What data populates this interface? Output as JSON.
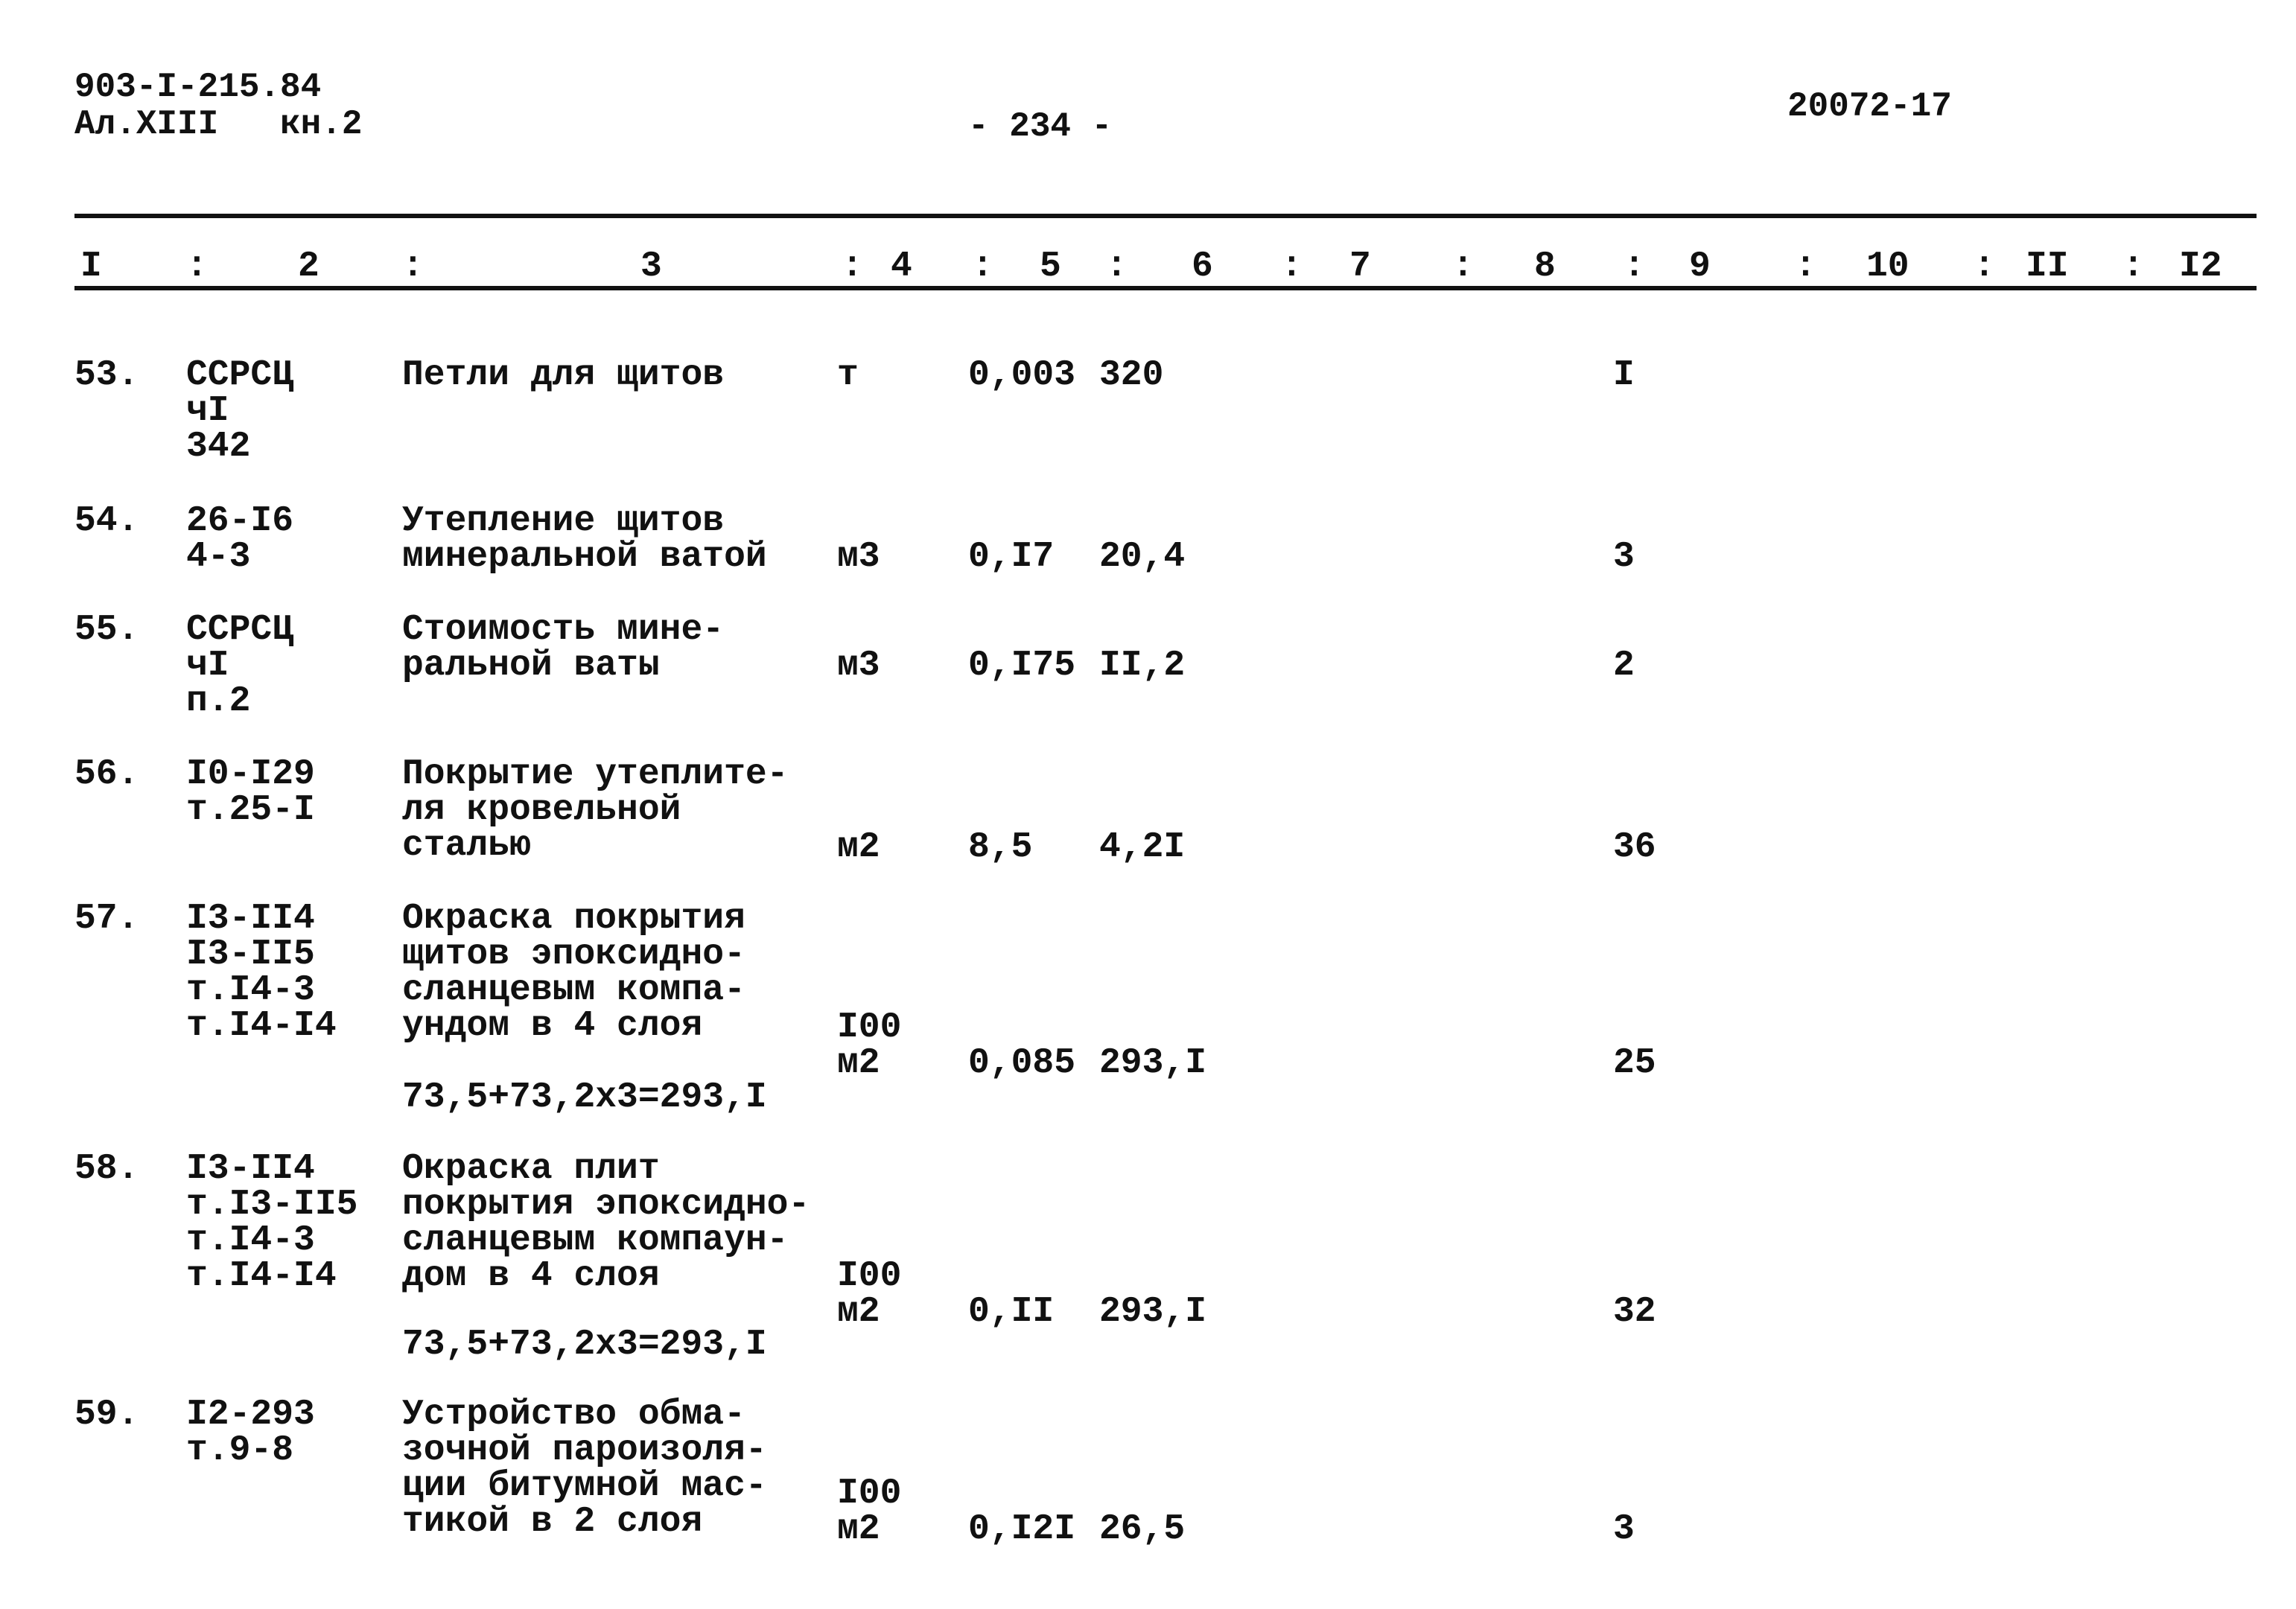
{
  "header": {
    "doc_code": "903-I-215.84",
    "album": "Ал.XIII   кн.2",
    "page_number": "- 234 -",
    "archive_number": "20072-17"
  },
  "columns": [
    "I",
    "2",
    "3",
    "4",
    "5",
    "6",
    "7",
    "8",
    "9",
    "10",
    "II",
    "I2"
  ],
  "rows": [
    {
      "num": "53.",
      "code": [
        "ССРСЦ",
        "чI",
        "342"
      ],
      "description": [
        "Петли для щитов"
      ],
      "formula": "",
      "unit": [
        "т"
      ],
      "col5": "0,003",
      "col6": "320",
      "col9": "I"
    },
    {
      "num": "54.",
      "code": [
        "26-I6",
        "4-3"
      ],
      "description": [
        "Утепление щитов",
        "минеральной ватой"
      ],
      "formula": "",
      "unit": [
        "м3"
      ],
      "col5": "0,I7",
      "col6": "20,4",
      "col9": "3"
    },
    {
      "num": "55.",
      "code": [
        "ССРСЦ",
        "чI",
        "п.2"
      ],
      "description": [
        "Стоимость мине-",
        "ральной ваты"
      ],
      "formula": "",
      "unit": [
        "м3"
      ],
      "col5": "0,I75",
      "col6": "II,2",
      "col9": "2"
    },
    {
      "num": "56.",
      "code": [
        "I0-I29",
        "т.25-I"
      ],
      "description": [
        "Покрытие утеплите-",
        "ля кровельной",
        "сталью"
      ],
      "formula": "",
      "unit": [
        "м2"
      ],
      "col5": "8,5",
      "col6": "4,2I",
      "col9": "36"
    },
    {
      "num": "57.",
      "code": [
        "I3-II4",
        "I3-II5",
        "т.I4-3",
        "т.I4-I4"
      ],
      "description": [
        "Окраска покрытия",
        "щитов эпоксидно-",
        "сланцевым компа-",
        "ундом в 4 слоя"
      ],
      "formula": "73,5+73,2x3=293,I",
      "unit": [
        "I00",
        "м2"
      ],
      "col5": "0,085",
      "col6": "293,I",
      "col9": "25"
    },
    {
      "num": "58.",
      "code": [
        "I3-II4",
        "т.I3-II5",
        "т.I4-3",
        "т.I4-I4"
      ],
      "description": [
        "Окраска плит",
        "покрытия эпоксидно-",
        "сланцевым компаун-",
        "дом в 4 слоя"
      ],
      "formula": "73,5+73,2x3=293,I",
      "unit": [
        "I00",
        "м2"
      ],
      "col5": "0,II",
      "col6": "293,I",
      "col9": "32"
    },
    {
      "num": "59.",
      "code": [
        "I2-293",
        "т.9-8"
      ],
      "description": [
        "Устройство обма-",
        "зочной пароизоля-",
        "ции битумной мас-",
        "тикой в 2 слоя"
      ],
      "formula": "",
      "unit": [
        "I00",
        "м2"
      ],
      "col5": "0,I2I",
      "col6": "26,5",
      "col9": "3"
    }
  ]
}
